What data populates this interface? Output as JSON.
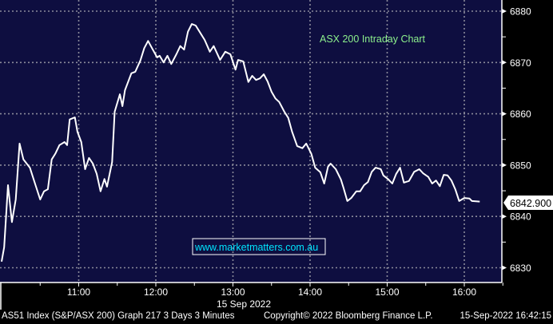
{
  "chart_data": {
    "type": "line",
    "title": "ASX 200 Intraday Chart",
    "xlabel": "15 Sep 2022",
    "ylabel": "",
    "x_ticks": [
      "11:00",
      "12:00",
      "13:00",
      "14:00",
      "15:00",
      "16:00"
    ],
    "y_ticks": [
      6830,
      6840,
      6850,
      6860,
      6870,
      6880
    ],
    "ylim": [
      6827,
      6882
    ],
    "xlim": [
      "10:00",
      "16:35"
    ],
    "grid": true,
    "y_axis_side": "right",
    "last_value_label": "6842.900",
    "colors": {
      "background": "#0e0e40",
      "line": "#ffffff",
      "title": "#8cf08c",
      "watermark": "#00e5ff"
    },
    "series": [
      {
        "x": [
          "10:00",
          "10:02",
          "10:05",
          "10:08",
          "10:11",
          "10:14",
          "10:17",
          "10:22",
          "10:26",
          "10:30",
          "10:33",
          "10:36",
          "10:39",
          "10:42",
          "10:45",
          "10:49",
          "10:51",
          "10:53",
          "10:57",
          "10:59",
          "11:02",
          "11:05",
          "11:08",
          "11:11",
          "11:14",
          "11:17",
          "11:20",
          "11:22",
          "11:26",
          "11:28",
          "11:32",
          "11:34",
          "11:36",
          "11:41",
          "11:44",
          "11:48",
          "11:51",
          "11:54",
          "11:57",
          "12:01",
          "12:03",
          "12:06",
          "12:09",
          "12:12",
          "12:16",
          "12:19",
          "12:22",
          "12:25",
          "12:28",
          "12:31",
          "12:34",
          "12:38",
          "12:42",
          "12:45",
          "12:50",
          "12:54",
          "12:58",
          "13:02",
          "13:04",
          "13:08",
          "13:12",
          "13:15",
          "13:18",
          "13:21",
          "13:24",
          "13:27",
          "13:30",
          "13:33",
          "13:36",
          "13:40",
          "13:43",
          "13:46",
          "13:50",
          "13:54",
          "13:57",
          "14:01",
          "14:04",
          "14:08",
          "14:11",
          "14:14",
          "14:16",
          "14:20",
          "14:24",
          "14:26",
          "14:29",
          "14:32",
          "14:36",
          "14:39",
          "14:42",
          "14:45",
          "14:48",
          "14:51",
          "14:55",
          "14:57",
          "15:01",
          "15:04",
          "15:07",
          "15:10",
          "15:13",
          "15:17",
          "15:21",
          "15:25",
          "15:28",
          "15:32",
          "15:35",
          "15:38",
          "15:41",
          "15:44",
          "15:47",
          "15:50",
          "15:53",
          "15:56",
          "16:00",
          "16:04",
          "16:06",
          "16:12"
        ],
        "values": [
          6831.2,
          6834.0,
          6846.1,
          6838.9,
          6843.3,
          6854.2,
          6851.1,
          6849.5,
          6846.4,
          6843.3,
          6844.9,
          6845.3,
          6851.1,
          6852.3,
          6853.9,
          6854.5,
          6853.9,
          6858.9,
          6859.3,
          6856.5,
          6854.5,
          6849.2,
          6851.4,
          6850.3,
          6848.3,
          6844.9,
          6847.3,
          6845.8,
          6850.6,
          6860.4,
          6863.8,
          6861.5,
          6864.6,
          6867.9,
          6868.2,
          6870.4,
          6872.8,
          6874.2,
          6872.8,
          6871.0,
          6871.3,
          6870.0,
          6871.3,
          6869.7,
          6871.6,
          6873.2,
          6872.5,
          6876.0,
          6877.5,
          6877.2,
          6876.0,
          6874.4,
          6872.1,
          6873.2,
          6870.5,
          6872.1,
          6871.6,
          6868.6,
          6870.5,
          6870.2,
          6866.2,
          6867.4,
          6866.6,
          6866.9,
          6867.7,
          6866.3,
          6864.3,
          6863.0,
          6862.3,
          6860.4,
          6859.2,
          6856.5,
          6853.7,
          6853.3,
          6854.2,
          6852.2,
          6849.5,
          6848.6,
          6846.4,
          6849.7,
          6850.3,
          6849.2,
          6847.2,
          6845.6,
          6843.0,
          6843.6,
          6844.9,
          6844.9,
          6846.1,
          6846.7,
          6848.7,
          6849.5,
          6849.2,
          6848.0,
          6847.2,
          6846.4,
          6848.3,
          6849.5,
          6846.6,
          6846.9,
          6848.7,
          6849.2,
          6848.4,
          6847.7,
          6846.4,
          6847.0,
          6845.9,
          6848.1,
          6848.0,
          6847.0,
          6845.3,
          6843.0,
          6843.6,
          6843.5,
          6843.0,
          6842.9
        ]
      }
    ]
  },
  "watermark": "www.marketmatters.com.au",
  "footer": {
    "left": "AS51 Index (S&P/ASX 200) Graph 217 3 Days 3 Minutes",
    "center": "Copyright© 2022 Bloomberg Finance L.P.",
    "right": "15-Sep-2022 16:42:15"
  }
}
